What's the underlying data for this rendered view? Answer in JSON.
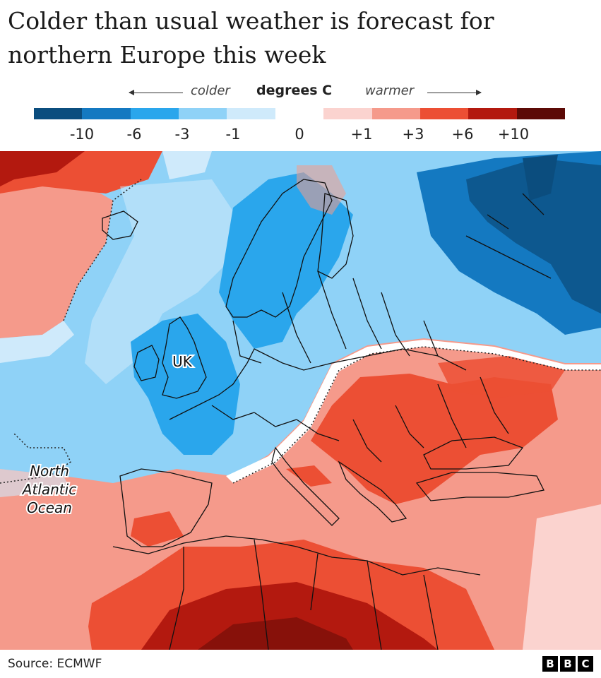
{
  "title": "Colder than usual weather is forecast for northern Europe this week",
  "legend": {
    "colder_label": "colder",
    "units_label": "degrees C",
    "warmer_label": "warmer",
    "colors": [
      "#0b4d7e",
      "#1479c1",
      "#2aa6ec",
      "#8fd2f7",
      "#cfeafb",
      "#ffffff",
      "#fbd3cf",
      "#f59a8b",
      "#ec4f34",
      "#b3190f",
      "#5c0a06"
    ],
    "ticks": [
      "-10",
      "-6",
      "-3",
      "-1",
      "0",
      "+1",
      "+3",
      "+6",
      "+10"
    ]
  },
  "map": {
    "labels": {
      "uk": "UK",
      "ocean": [
        "North",
        "Atlantic",
        "Ocean"
      ]
    },
    "colors": {
      "deep_blue": "#0b4d7e",
      "mid_blue": "#1479c1",
      "blue": "#2aa6ec",
      "light_blue": "#8fd2f7",
      "pale_blue": "#cfeafb",
      "pale_red": "#fbd3cf",
      "salmon": "#f59a8b",
      "red": "#ec4f34",
      "dark_red": "#b3190f",
      "maroon": "#5c0a06"
    }
  },
  "footer": {
    "source": "Source: ECMWF",
    "logo": [
      "B",
      "B",
      "C"
    ]
  }
}
